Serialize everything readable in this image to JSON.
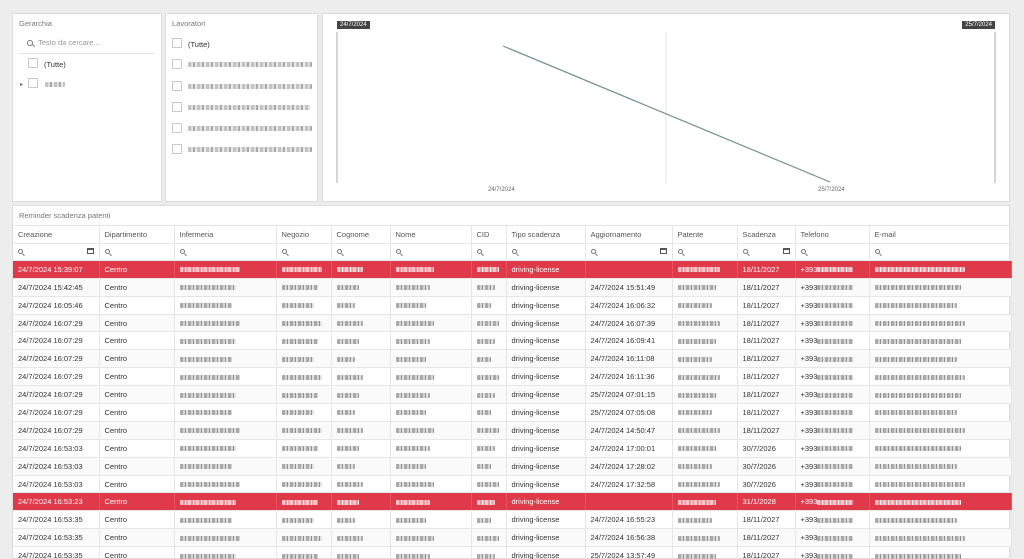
{
  "gerarchia": {
    "title": "Gerarchia",
    "search_placeholder": "Testo da cercare...",
    "all_label": "(Tutte)"
  },
  "lavoratori": {
    "title": "Lavoratori",
    "all_label": "(Tutte)"
  },
  "chart_data": {
    "type": "line",
    "x": [
      "24/7/2024",
      "25/7/2024"
    ],
    "series": [
      {
        "values": [
          1,
          0
        ]
      }
    ],
    "range_start_label": "24/7/2024",
    "range_end_label": "25/7/2024",
    "line_color": "#6f8f96"
  },
  "table": {
    "title": "Reminder scadenza patenti",
    "columns": [
      "Creazione",
      "Dipartimento",
      "Infermeria",
      "Negozio",
      "Cognome",
      "Nome",
      "CID",
      "Tipo scadenza",
      "Aggiornamento",
      "Patente",
      "Scadenza",
      "Telefono",
      "E-mail"
    ],
    "highlight_color": "#e03a4a",
    "rows": [
      {
        "creazione": "24/7/2024 15:39:07",
        "dipartimento": "Centro",
        "tipo": "driving-license",
        "aggiornamento": "",
        "scadenza": "18/11/2027",
        "telefono": "+393",
        "highlight": true
      },
      {
        "creazione": "24/7/2024 15:42:45",
        "dipartimento": "Centro",
        "tipo": "driving-license",
        "aggiornamento": "24/7/2024 15:51:49",
        "scadenza": "18/11/2027",
        "telefono": "+393",
        "highlight": false
      },
      {
        "creazione": "24/7/2024 16:05:46",
        "dipartimento": "Centro",
        "tipo": "driving-license",
        "aggiornamento": "24/7/2024 16:06:32",
        "scadenza": "18/11/2027",
        "telefono": "+393",
        "highlight": false
      },
      {
        "creazione": "24/7/2024 16:07:29",
        "dipartimento": "Centro",
        "tipo": "driving-license",
        "aggiornamento": "24/7/2024 16:07:39",
        "scadenza": "18/11/2027",
        "telefono": "+393",
        "highlight": false
      },
      {
        "creazione": "24/7/2024 16:07:29",
        "dipartimento": "Centro",
        "tipo": "driving-license",
        "aggiornamento": "24/7/2024 16:09:41",
        "scadenza": "18/11/2027",
        "telefono": "+393",
        "highlight": false
      },
      {
        "creazione": "24/7/2024 16:07:29",
        "dipartimento": "Centro",
        "tipo": "driving-license",
        "aggiornamento": "24/7/2024 16:11:08",
        "scadenza": "18/11/2027",
        "telefono": "+393",
        "highlight": false
      },
      {
        "creazione": "24/7/2024 16:07:29",
        "dipartimento": "Centro",
        "tipo": "driving-license",
        "aggiornamento": "24/7/2024 16:11:36",
        "scadenza": "18/11/2027",
        "telefono": "+393",
        "highlight": false
      },
      {
        "creazione": "24/7/2024 16:07:29",
        "dipartimento": "Centro",
        "tipo": "driving-license",
        "aggiornamento": "25/7/2024 07:01:15",
        "scadenza": "18/11/2027",
        "telefono": "+393",
        "highlight": false
      },
      {
        "creazione": "24/7/2024 16:07:29",
        "dipartimento": "Centro",
        "tipo": "driving-license",
        "aggiornamento": "25/7/2024 07:05:08",
        "scadenza": "18/11/2027",
        "telefono": "+393",
        "highlight": false
      },
      {
        "creazione": "24/7/2024 16:07:29",
        "dipartimento": "Centro",
        "tipo": "driving-license",
        "aggiornamento": "24/7/2024 14:50:47",
        "scadenza": "18/11/2027",
        "telefono": "+393",
        "highlight": false
      },
      {
        "creazione": "24/7/2024 16:53:03",
        "dipartimento": "Centro",
        "tipo": "driving-license",
        "aggiornamento": "24/7/2024 17:00:01",
        "scadenza": "30/7/2026",
        "telefono": "+393",
        "highlight": false
      },
      {
        "creazione": "24/7/2024 16:53:03",
        "dipartimento": "Centro",
        "tipo": "driving-license",
        "aggiornamento": "24/7/2024 17:28:02",
        "scadenza": "30/7/2026",
        "telefono": "+393",
        "highlight": false
      },
      {
        "creazione": "24/7/2024 16:53:03",
        "dipartimento": "Centro",
        "tipo": "driving-license",
        "aggiornamento": "24/7/2024 17:32:58",
        "scadenza": "30/7/2026",
        "telefono": "+393",
        "highlight": false
      },
      {
        "creazione": "24/7/2024 16:53:23",
        "dipartimento": "Centro",
        "tipo": "driving-license",
        "aggiornamento": "",
        "scadenza": "31/1/2028",
        "telefono": "+393",
        "highlight": true
      },
      {
        "creazione": "24/7/2024 16:53:35",
        "dipartimento": "Centro",
        "tipo": "driving-license",
        "aggiornamento": "24/7/2024 16:55:23",
        "scadenza": "18/11/2027",
        "telefono": "+393",
        "highlight": false
      },
      {
        "creazione": "24/7/2024 16:53:35",
        "dipartimento": "Centro",
        "tipo": "driving-license",
        "aggiornamento": "24/7/2024 16:56:38",
        "scadenza": "18/11/2027",
        "telefono": "+393",
        "highlight": false
      },
      {
        "creazione": "24/7/2024 16:53:35",
        "dipartimento": "Centro",
        "tipo": "driving-license",
        "aggiornamento": "25/7/2024 13:57:49",
        "scadenza": "18/11/2027",
        "telefono": "+393",
        "highlight": false
      }
    ]
  }
}
